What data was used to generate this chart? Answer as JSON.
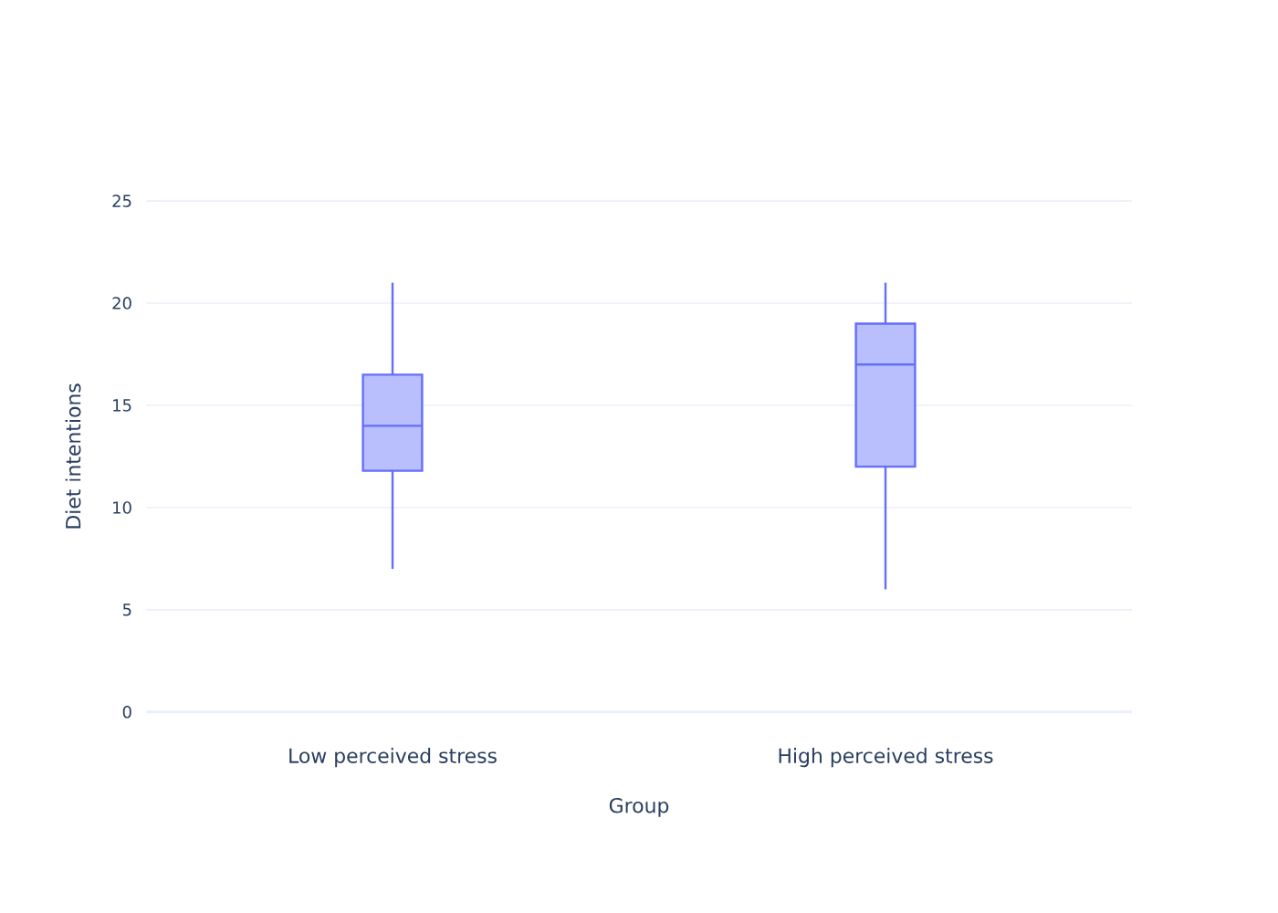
{
  "chart_data": {
    "type": "box",
    "xlabel": "Group",
    "ylabel": "Diet intentions",
    "categories": [
      "Low perceived stress",
      "High perceived stress"
    ],
    "series": [
      {
        "color": "#636efa",
        "boxes": [
          {
            "low": 7,
            "q1": 11.8,
            "median": 14,
            "q3": 16.5,
            "high": 21
          },
          {
            "low": 6,
            "q1": 12,
            "median": 17,
            "q3": 19,
            "high": 21
          }
        ]
      }
    ],
    "ylim": [
      0,
      25
    ],
    "yticks": [
      0,
      5,
      10,
      15,
      20,
      25
    ],
    "grid": "y"
  }
}
